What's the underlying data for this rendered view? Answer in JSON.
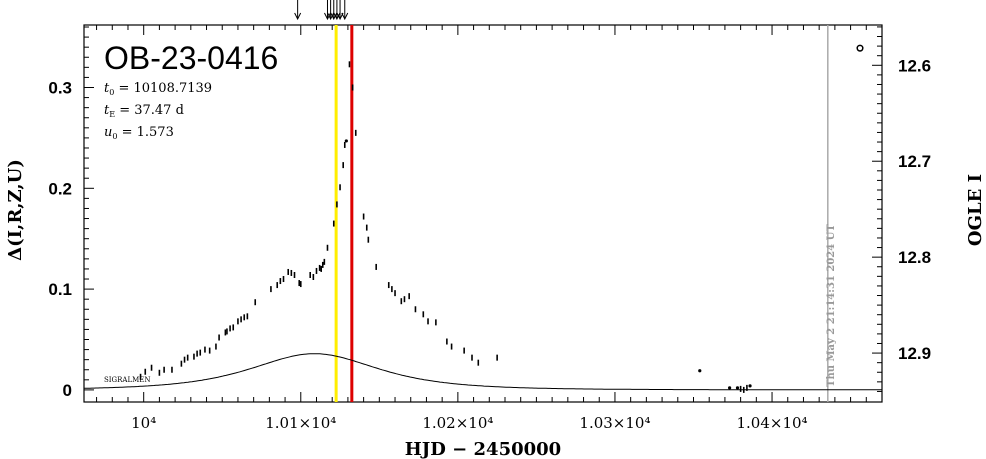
{
  "chart_data": {
    "type": "scatter",
    "title": "OB-23-0416",
    "params": [
      {
        "sym": "t",
        "sub": "0",
        "text": " = 10108.7139"
      },
      {
        "sym": "t",
        "sub": "E",
        "text": " = 37.47 d"
      },
      {
        "sym": "u",
        "sub": "0",
        "text": " = 1.573"
      }
    ],
    "xlabel": "HJD − 2450000",
    "ylabel": "Δ(I,R,Z,U)",
    "y2label": "OGLE I",
    "timestamp": "Thu May  2 21:14:31 2024 UT",
    "signature": "SIGRALMEN",
    "xlim": [
      9962,
      10470
    ],
    "ylim": [
      -0.012,
      0.362
    ],
    "y2lim": [
      12.558,
      12.951
    ],
    "xticks": [
      {
        "value": 10000,
        "label": "10⁴"
      },
      {
        "value": 10100,
        "label": "1.01×10⁴"
      },
      {
        "value": 10200,
        "label": "1.02×10⁴"
      },
      {
        "value": 10300,
        "label": "1.03×10⁴"
      },
      {
        "value": 10400,
        "label": "1.04×10⁴"
      }
    ],
    "yticks": [
      {
        "value": 0,
        "label": "0"
      },
      {
        "value": 0.1,
        "label": "0.1"
      },
      {
        "value": 0.2,
        "label": "0.2"
      },
      {
        "value": 0.3,
        "label": "0.3"
      }
    ],
    "y2ticks": [
      {
        "value": 12.6,
        "label": "12.6"
      },
      {
        "value": 12.7,
        "label": "12.7"
      },
      {
        "value": 12.8,
        "label": "12.8"
      },
      {
        "value": 12.9,
        "label": "12.9"
      }
    ],
    "vlines": [
      {
        "x": 10122.5,
        "color": "#ffee00"
      },
      {
        "x": 10132.5,
        "color": "#dd0000"
      },
      {
        "x": 10435.5,
        "color": "#aaaaaa"
      }
    ],
    "arrows_x": [
      10098,
      10117,
      10119,
      10121,
      10123,
      10125,
      10128
    ],
    "model": {
      "t0": 10108.7139,
      "tE": 37.47,
      "u0": 1.573,
      "baseline": 0.0,
      "scale": 0.3048
    },
    "series": [
      {
        "marker": "errorbar",
        "points": [
          [
            9998,
            0.013
          ],
          [
            10001,
            0.018
          ],
          [
            10005,
            0.022
          ],
          [
            10010,
            0.017
          ],
          [
            10013,
            0.02
          ],
          [
            10018,
            0.02
          ],
          [
            10024,
            0.026
          ],
          [
            10026,
            0.03
          ],
          [
            10028,
            0.032
          ],
          [
            10032,
            0.033
          ],
          [
            10034,
            0.036
          ],
          [
            10036,
            0.037
          ],
          [
            10039,
            0.04
          ],
          [
            10042,
            0.039
          ],
          [
            10046,
            0.043
          ],
          [
            10048,
            0.052
          ],
          [
            10052,
            0.057
          ],
          [
            10053,
            0.058
          ],
          [
            10055,
            0.061
          ],
          [
            10057,
            0.062
          ],
          [
            10060,
            0.068
          ],
          [
            10062,
            0.07
          ],
          [
            10064,
            0.072
          ],
          [
            10066,
            0.073
          ],
          [
            10071,
            0.087
          ],
          [
            10081,
            0.1
          ],
          [
            10085,
            0.104
          ],
          [
            10087,
            0.108
          ],
          [
            10089,
            0.11
          ],
          [
            10092,
            0.117
          ],
          [
            10094,
            0.116
          ],
          [
            10096,
            0.114
          ],
          [
            10099,
            0.106
          ],
          [
            10100,
            0.105
          ],
          [
            10106,
            0.114
          ],
          [
            10108,
            0.112
          ],
          [
            10110,
            0.118
          ],
          [
            10112,
            0.121
          ],
          [
            10113,
            0.12
          ],
          [
            10114,
            0.124
          ],
          [
            10115,
            0.127
          ],
          [
            10117,
            0.141
          ],
          [
            10121,
            0.165
          ],
          [
            10123,
            0.184
          ],
          [
            10125,
            0.201
          ],
          [
            10127,
            0.223
          ],
          [
            10128,
            0.243
          ],
          [
            10131,
            0.323
          ],
          [
            10133,
            0.3
          ],
          [
            10135,
            0.255
          ],
          [
            10140,
            0.172
          ],
          [
            10142,
            0.161
          ],
          [
            10143,
            0.149
          ],
          [
            10148,
            0.122
          ],
          [
            10156,
            0.104
          ],
          [
            10158,
            0.1
          ],
          [
            10160,
            0.096
          ],
          [
            10164,
            0.088
          ],
          [
            10166,
            0.09
          ],
          [
            10169,
            0.093
          ],
          [
            10173,
            0.08
          ],
          [
            10178,
            0.075
          ],
          [
            10181,
            0.068
          ],
          [
            10186,
            0.067
          ],
          [
            10193,
            0.048
          ],
          [
            10196,
            0.043
          ],
          [
            10204,
            0.039
          ],
          [
            10209,
            0.032
          ],
          [
            10213,
            0.027
          ],
          [
            10225,
            0.032
          ],
          [
            10380,
            0.001
          ],
          [
            10382,
            0.0
          ],
          [
            10384,
            0.002
          ]
        ]
      },
      {
        "marker": "dot",
        "points": [
          [
            10129,
            0.247
          ],
          [
            10354,
            0.019
          ],
          [
            10373,
            0.002
          ],
          [
            10378,
            0.002
          ],
          [
            10386,
            0.004
          ]
        ]
      },
      {
        "marker": "circle",
        "points": [
          [
            10456,
            0.339
          ]
        ]
      }
    ]
  }
}
